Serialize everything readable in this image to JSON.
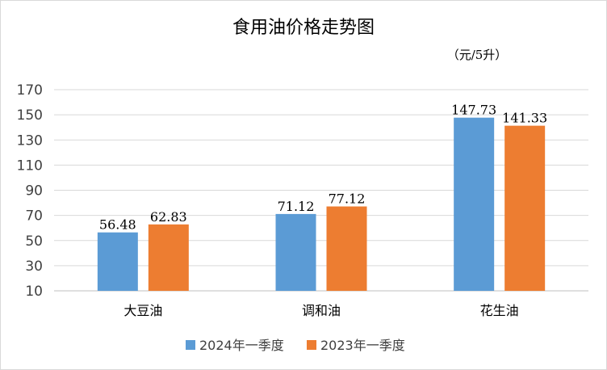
{
  "chart_data": {
    "type": "bar",
    "title": "食用油价格走势图",
    "unit_label": "（元/5升）",
    "categories": [
      "大豆油",
      "调和油",
      "花生油"
    ],
    "series": [
      {
        "name": "2024年一季度",
        "color": "#5B9BD5",
        "values": [
          56.48,
          71.12,
          147.73
        ]
      },
      {
        "name": "2023年一季度",
        "color": "#ED7D31",
        "values": [
          62.83,
          77.12,
          141.33
        ]
      }
    ],
    "ylim": [
      10,
      170
    ],
    "yticks": [
      10,
      30,
      50,
      70,
      90,
      110,
      130,
      150,
      170
    ],
    "grid": true,
    "legend_position": "bottom"
  }
}
